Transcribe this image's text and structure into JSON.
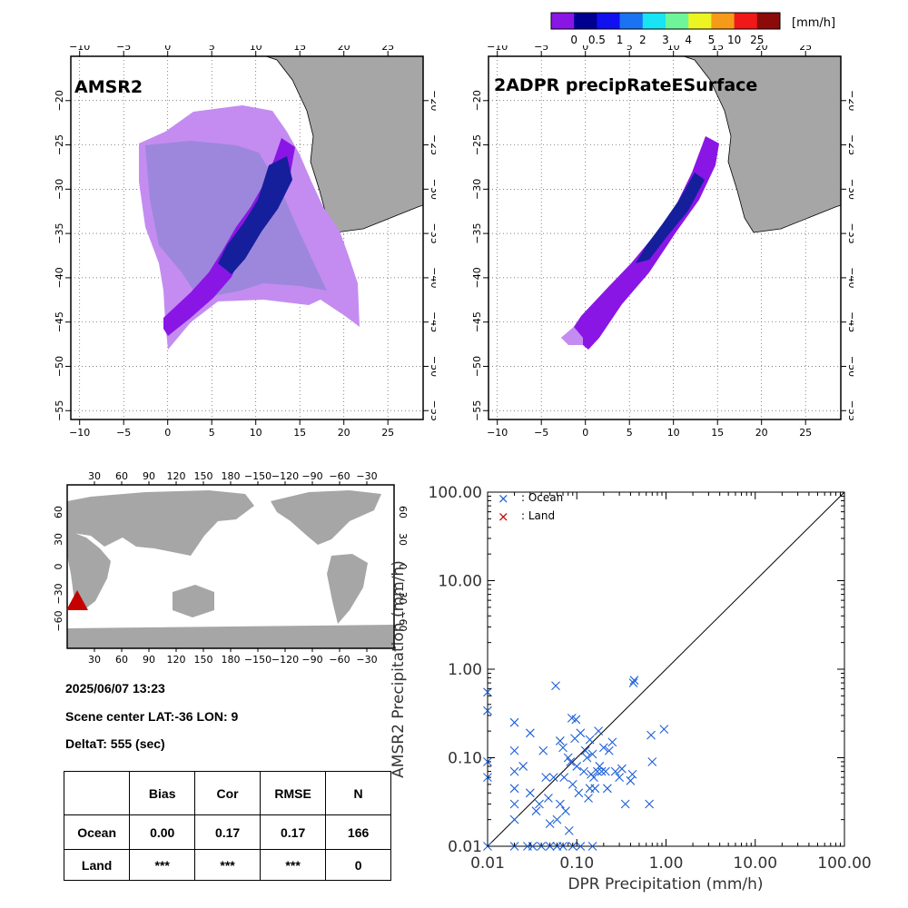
{
  "colorbar": {
    "unit": "[mm/h]",
    "colors": [
      "#8a16e6",
      "#000090",
      "#1010f0",
      "#1a73f2",
      "#18e4f4",
      "#6ef59a",
      "#ecf522",
      "#f59b18",
      "#f01818",
      "#8c0a0a"
    ],
    "labels": [
      "0",
      "0.5",
      "1",
      "2",
      "3",
      "4",
      "5",
      "10",
      "25"
    ]
  },
  "maps": [
    {
      "title": "AMSR2",
      "lon_ticks": [
        "−10",
        "−5",
        "0",
        "5",
        "10",
        "15",
        "20",
        "25"
      ],
      "lat_ticks": [
        "−20",
        "−25",
        "−30",
        "−35",
        "−40",
        "−45",
        "−50",
        "−55"
      ],
      "lon_range": [
        -11,
        29
      ],
      "lat_range": [
        -56,
        -15
      ],
      "grid": true
    },
    {
      "title": "2ADPR precipRateESurface",
      "lon_ticks": [
        "−10",
        "−5",
        "0",
        "5",
        "10",
        "15",
        "20",
        "25"
      ],
      "lat_ticks": [
        "−20",
        "−25",
        "−30",
        "−35",
        "−40",
        "−45",
        "−50",
        "−55"
      ],
      "lon_range": [
        -11,
        29
      ],
      "lat_range": [
        -56,
        -15
      ],
      "grid": true
    }
  ],
  "world_map": {
    "top_lon_ticks": [
      "30",
      "60",
      "90",
      "120",
      "150",
      "180",
      "−150",
      "−120",
      "−90",
      "−60",
      "−30"
    ],
    "bottom_lon_ticks": [
      "30",
      "60",
      "90",
      "120",
      "150",
      "180",
      "−150",
      "−120",
      "−90",
      "−60",
      "−30"
    ],
    "lat_ticks": [
      "60",
      "30",
      "0",
      "−30",
      "−60"
    ],
    "marker_color": "#c40000"
  },
  "info": {
    "datetime": "2025/06/07 13:23",
    "scene_center": "Scene center LAT:-36   LON:   9",
    "deltat": "DeltaT:  555 (sec)"
  },
  "stats_table": {
    "headers": [
      "",
      "Bias",
      "Cor",
      "RMSE",
      "N"
    ],
    "rows": [
      [
        "Ocean",
        "0.00",
        "0.17",
        "0.17",
        "166"
      ],
      [
        "Land",
        "***",
        "***",
        "***",
        "0"
      ]
    ]
  },
  "chart_data": {
    "type": "scatter",
    "xlabel": "DPR Precipitation (mm/h)",
    "ylabel": "AMSR2 Precipitation (mm/h)",
    "xscale": "log",
    "yscale": "log",
    "xlim": [
      0.01,
      100
    ],
    "ylim": [
      0.01,
      100
    ],
    "tick_values": [
      0.01,
      0.1,
      1,
      10,
      100
    ],
    "tick_labels": [
      "0.01",
      "0.10",
      "1.00",
      "10.00",
      "100.00"
    ],
    "diagonal_line": true,
    "legend_placement": "top-left",
    "series": [
      {
        "name": ": Ocean",
        "color": "#1c5fd6",
        "points": [
          [
            0.01,
            0.01
          ],
          [
            0.01,
            0.06
          ],
          [
            0.01,
            0.09
          ],
          [
            0.01,
            0.34
          ],
          [
            0.01,
            0.55
          ],
          [
            0.02,
            0.01
          ],
          [
            0.02,
            0.02
          ],
          [
            0.02,
            0.03
          ],
          [
            0.02,
            0.045
          ],
          [
            0.02,
            0.07
          ],
          [
            0.02,
            0.12
          ],
          [
            0.02,
            0.25
          ],
          [
            0.025,
            0.08
          ],
          [
            0.028,
            0.01
          ],
          [
            0.03,
            0.04
          ],
          [
            0.03,
            0.19
          ],
          [
            0.032,
            0.01
          ],
          [
            0.035,
            0.025
          ],
          [
            0.038,
            0.03
          ],
          [
            0.04,
            0.01
          ],
          [
            0.042,
            0.12
          ],
          [
            0.045,
            0.06
          ],
          [
            0.048,
            0.035
          ],
          [
            0.05,
            0.01
          ],
          [
            0.05,
            0.018
          ],
          [
            0.055,
            0.06
          ],
          [
            0.058,
            0.65
          ],
          [
            0.06,
            0.01
          ],
          [
            0.06,
            0.02
          ],
          [
            0.065,
            0.03
          ],
          [
            0.065,
            0.155
          ],
          [
            0.07,
            0.01
          ],
          [
            0.07,
            0.13
          ],
          [
            0.072,
            0.06
          ],
          [
            0.075,
            0.025
          ],
          [
            0.08,
            0.1
          ],
          [
            0.082,
            0.015
          ],
          [
            0.085,
            0.09
          ],
          [
            0.088,
            0.28
          ],
          [
            0.09,
            0.01
          ],
          [
            0.09,
            0.05
          ],
          [
            0.095,
            0.165
          ],
          [
            0.098,
            0.27
          ],
          [
            0.1,
            0.08
          ],
          [
            0.105,
            0.04
          ],
          [
            0.11,
            0.01
          ],
          [
            0.11,
            0.19
          ],
          [
            0.12,
            0.07
          ],
          [
            0.125,
            0.12
          ],
          [
            0.13,
            0.1
          ],
          [
            0.135,
            0.035
          ],
          [
            0.14,
            0.045
          ],
          [
            0.14,
            0.16
          ],
          [
            0.145,
            0.065
          ],
          [
            0.15,
            0.01
          ],
          [
            0.15,
            0.11
          ],
          [
            0.155,
            0.06
          ],
          [
            0.16,
            0.045
          ],
          [
            0.17,
            0.07
          ],
          [
            0.175,
            0.2
          ],
          [
            0.18,
            0.08
          ],
          [
            0.19,
            0.07
          ],
          [
            0.2,
            0.13
          ],
          [
            0.21,
            0.07
          ],
          [
            0.22,
            0.045
          ],
          [
            0.23,
            0.12
          ],
          [
            0.25,
            0.15
          ],
          [
            0.27,
            0.07
          ],
          [
            0.3,
            0.06
          ],
          [
            0.32,
            0.075
          ],
          [
            0.35,
            0.03
          ],
          [
            0.4,
            0.055
          ],
          [
            0.42,
            0.065
          ],
          [
            0.43,
            0.7
          ],
          [
            0.44,
            0.75
          ],
          [
            0.65,
            0.03
          ],
          [
            0.68,
            0.18
          ],
          [
            0.7,
            0.09
          ],
          [
            0.95,
            0.21
          ]
        ]
      },
      {
        "name": ": Land",
        "color": "#c40000",
        "points": []
      }
    ]
  }
}
